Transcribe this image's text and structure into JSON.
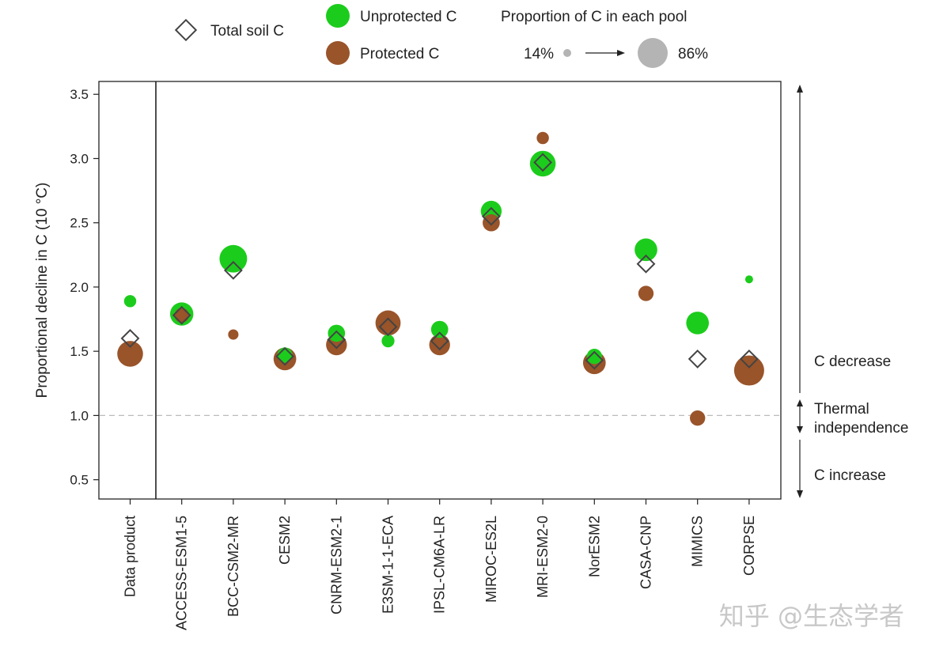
{
  "legend": {
    "total_label": "Total soil C",
    "unprotected_label": "Unprotected C",
    "protected_label": "Protected C",
    "size_title": "Proportion of C in each pool",
    "size_min_label": "14%",
    "size_max_label": "86%"
  },
  "annotations": {
    "decrease": "C decrease",
    "thermal_line1": "Thermal",
    "thermal_line2": "independence",
    "increase": "C increase"
  },
  "watermark": "知乎 @生态学者",
  "colors": {
    "unprotected": "#1ccc1c",
    "protected": "#99542a",
    "diamond": "#444444",
    "size_legend": "#b4b4b4",
    "reference_line": "#bbbbbb"
  },
  "chart_data": {
    "type": "scatter",
    "ylabel": "Proportional decline in C (10 °C)",
    "xlabel": "",
    "ylim": [
      0.35,
      3.6
    ],
    "yticks": [
      "0.5",
      "1.0",
      "1.5",
      "2.0",
      "2.5",
      "3.0",
      "3.5"
    ],
    "reference_line_y": 1.0,
    "categories": [
      "Data product",
      "ACCESS-ESM1-5",
      "BCC-CSM2-MR",
      "CESM2",
      "CNRM-ESM2-1",
      "E3SM-1-1-ECA",
      "IPSL-CM6A-LR",
      "MIROC-ES2L",
      "MRI-ESM2-0",
      "NorESM2",
      "CASA-CNP",
      "MIMICS",
      "CORPSE"
    ],
    "series": [
      {
        "name": "Total soil C",
        "marker": "diamond",
        "values": [
          1.6,
          1.78,
          2.13,
          1.46,
          1.59,
          1.69,
          1.58,
          2.55,
          2.97,
          1.43,
          2.18,
          1.44,
          1.44
        ]
      },
      {
        "name": "Unprotected C",
        "marker": "circle",
        "values": [
          1.89,
          1.79,
          2.22,
          1.47,
          1.64,
          1.58,
          1.67,
          2.59,
          2.96,
          1.46,
          2.29,
          1.72,
          2.06
        ],
        "pool_proportion": [
          0.28,
          0.64,
          0.78,
          0.38,
          0.44,
          0.3,
          0.44,
          0.56,
          0.72,
          0.38,
          0.62,
          0.62,
          0.14
        ]
      },
      {
        "name": "Protected C",
        "marker": "circle",
        "values": [
          1.48,
          1.78,
          1.63,
          1.44,
          1.55,
          1.72,
          1.55,
          2.5,
          3.16,
          1.41,
          1.95,
          0.98,
          1.35
        ],
        "pool_proportion": [
          0.72,
          0.36,
          0.22,
          0.62,
          0.56,
          0.7,
          0.56,
          0.44,
          0.28,
          0.62,
          0.38,
          0.38,
          0.86
        ]
      }
    ]
  }
}
